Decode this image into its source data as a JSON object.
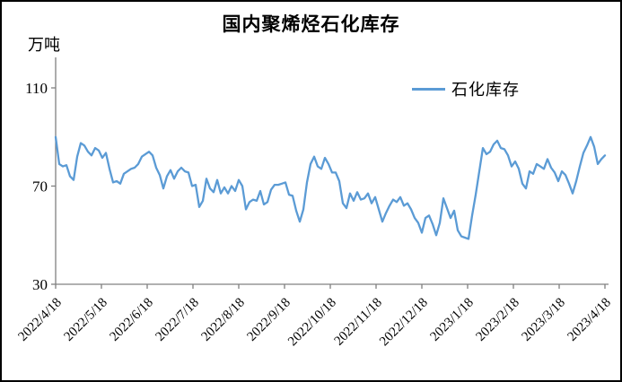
{
  "chart_data": {
    "type": "line",
    "title": "国内聚烯烃石化库存",
    "unit_label": "万吨",
    "xlabel": "",
    "ylabel": "万吨",
    "ylim": [
      30,
      110
    ],
    "y_ticks": [
      110,
      70,
      30
    ],
    "grid": false,
    "legend_position": "top-right-inside",
    "x_tick_labels": [
      "2022/4/18",
      "2022/5/18",
      "2022/6/18",
      "2022/7/18",
      "2022/8/18",
      "2022/9/18",
      "2022/10/18",
      "2022/11/18",
      "2022/12/18",
      "2023/1/18",
      "2023/2/18",
      "2023/3/18",
      "2023/4/18"
    ],
    "series": [
      {
        "name": "石化库存",
        "color": "#5B9BD5",
        "values": [
          90,
          79,
          78,
          78.5,
          74,
          72.5,
          82,
          87.5,
          86.5,
          84,
          82.5,
          85.5,
          84.5,
          81.5,
          83.5,
          77,
          71.5,
          72,
          71,
          75,
          76,
          77,
          77.5,
          79,
          82,
          83,
          84,
          82.5,
          77.5,
          74.5,
          69,
          74,
          76.5,
          73,
          76,
          77.5,
          76,
          75.5,
          70,
          70.5,
          61.5,
          64,
          73,
          69,
          67.5,
          72.5,
          67,
          69.5,
          67,
          70,
          68,
          72.5,
          70,
          60.5,
          63.5,
          64.5,
          64,
          68,
          62.5,
          63.5,
          68.5,
          70.5,
          70.5,
          71,
          71.5,
          66.5,
          66,
          60,
          55.5,
          60.5,
          71.5,
          79,
          82,
          78,
          77,
          81.5,
          79,
          75.5,
          75.5,
          72,
          63,
          61,
          67,
          64,
          67.5,
          64.5,
          65,
          67,
          63,
          65.5,
          60.5,
          55.5,
          59,
          62,
          64.5,
          63.5,
          65.5,
          62,
          63,
          60.5,
          57,
          55,
          51,
          57,
          58,
          54.5,
          50,
          55,
          65,
          61,
          57,
          60,
          52,
          49.5,
          49,
          48.5,
          58,
          66.5,
          76,
          85.5,
          83,
          84,
          87,
          88.5,
          85.5,
          85,
          82.5,
          78,
          80,
          77,
          71,
          69,
          76,
          75,
          79,
          78,
          77,
          81,
          77.5,
          75.5,
          72,
          76,
          74.5,
          71,
          67,
          72,
          78,
          83.5,
          86.5,
          90,
          86,
          79,
          81,
          82.5
        ]
      }
    ],
    "colors": {
      "line": "#5B9BD5",
      "axis": "#808080",
      "text": "#000000",
      "background": "#FFFFFF",
      "border": "#000000"
    }
  }
}
